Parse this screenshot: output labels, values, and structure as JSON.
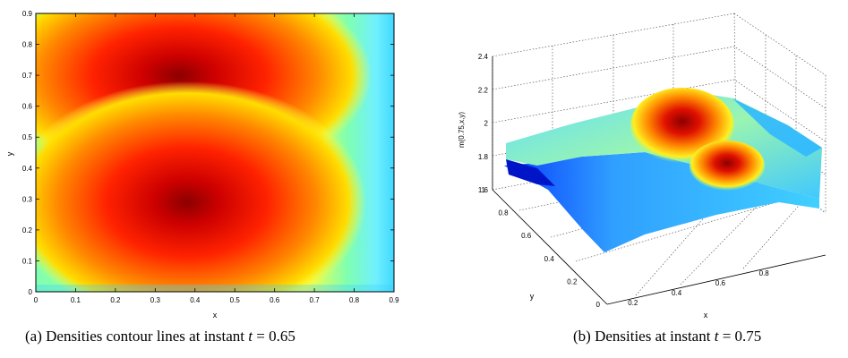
{
  "captions": {
    "a": {
      "prefix": "(a)  Densities contour lines at instant ",
      "var": "t",
      "rest": " = 0.65"
    },
    "b": {
      "prefix": "(b)  Densities at instant ",
      "var": "t",
      "rest": " = 0.75"
    }
  },
  "colormap": [
    "#00007f",
    "#0000ff",
    "#007fff",
    "#00ffff",
    "#7fff7f",
    "#ffff00",
    "#ff7f00",
    "#ff0000",
    "#7f0000"
  ],
  "chart_data": [
    {
      "type": "heatmap",
      "xlabel": "x",
      "ylabel": "y",
      "xlim": [
        0,
        0.9
      ],
      "ylim": [
        0,
        0.9
      ],
      "xticks": [
        "0",
        "0.1",
        "0.2",
        "0.3",
        "0.4",
        "0.5",
        "0.6",
        "0.7",
        "0.8",
        "0.9"
      ],
      "yticks": [
        "0",
        "0.1",
        "0.2",
        "0.3",
        "0.4",
        "0.5",
        "0.6",
        "0.7",
        "0.8",
        "0.9"
      ],
      "density_peaks": [
        {
          "x": 0.36,
          "y": 0.7,
          "level": "high"
        },
        {
          "x": 0.38,
          "y": 0.29,
          "level": "high"
        }
      ],
      "grid": false
    },
    {
      "type": "surface",
      "xlabel": "x",
      "ylabel": "y",
      "zlabel": "m(0.75,x,y)",
      "xticks": [
        "0.2",
        "0.4",
        "0.6",
        "0.8"
      ],
      "yticks": [
        "0",
        "0.2",
        "0.4",
        "0.6",
        "0.8",
        "1"
      ],
      "zticks": [
        "1.6",
        "1.8",
        "2",
        "2.2",
        "2.4"
      ],
      "zlim": [
        1.6,
        2.4
      ],
      "density_peaks": [
        {
          "x": 0.6,
          "y": 0.75,
          "z": 2.3
        },
        {
          "x": 0.8,
          "y": 0.5,
          "z": 2.0
        }
      ],
      "grid": true
    }
  ]
}
